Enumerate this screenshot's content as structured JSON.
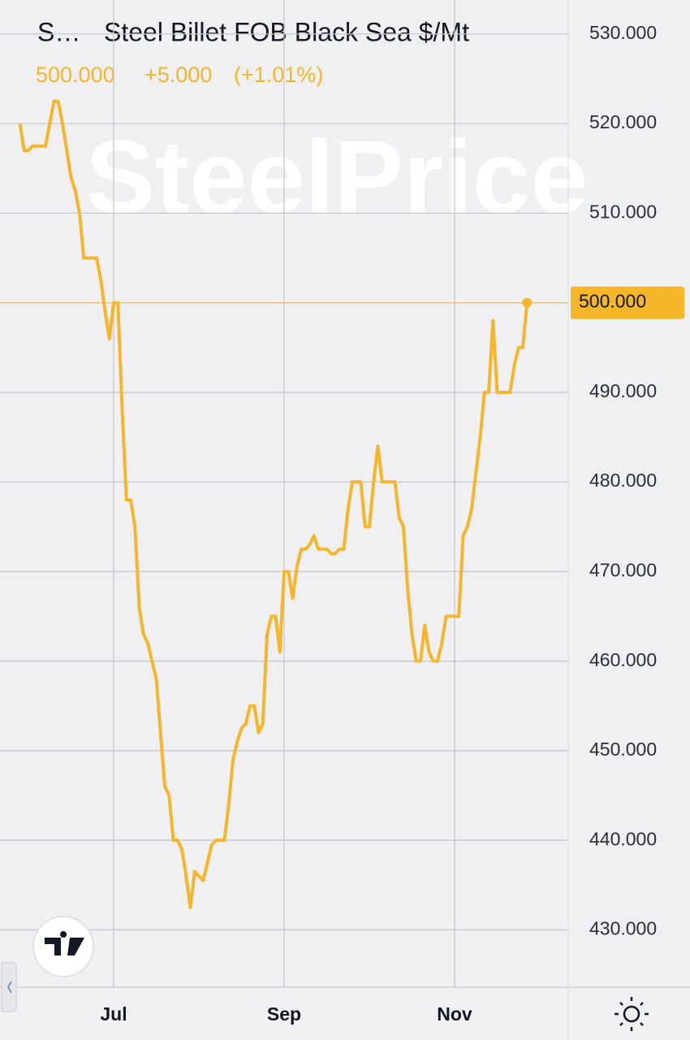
{
  "chart_data": {
    "type": "line",
    "symbol": "S…",
    "title": "Steel Billet FOB Black Sea $/Mt",
    "last": "500.000",
    "change": "+5.000",
    "change_pct": "(+1.01%)",
    "watermark": "SteelPrice",
    "price_label": "500.000",
    "categories": [
      null,
      null,
      null,
      null,
      null,
      null,
      null,
      null,
      null,
      null,
      null,
      null,
      null,
      null,
      null,
      null,
      null,
      null,
      null,
      null,
      null,
      null,
      "Jul",
      null,
      null,
      null,
      null,
      null,
      null,
      null,
      null,
      null,
      null,
      null,
      null,
      null,
      null,
      null,
      null,
      null,
      null,
      null,
      null,
      null,
      null,
      null,
      null,
      null,
      null,
      null,
      null,
      null,
      null,
      null,
      null,
      null,
      null,
      null,
      null,
      null,
      null,
      null,
      "Sep",
      null,
      null,
      null,
      null,
      null,
      null,
      null,
      null,
      null,
      null,
      null,
      null,
      null,
      null,
      null,
      null,
      null,
      null,
      null,
      null,
      null,
      null,
      null,
      null,
      null,
      null,
      null,
      null,
      null,
      null,
      null,
      null,
      null,
      null,
      null,
      null,
      null,
      null,
      null,
      "Nov",
      null,
      null,
      null,
      null,
      null,
      null,
      null,
      null,
      null,
      null,
      null,
      null,
      null,
      null,
      null,
      null,
      null
    ],
    "series": [
      {
        "name": "Steel Billet FOB Black Sea $/Mt",
        "color": "#f5b62a",
        "values": [
          520,
          517,
          517,
          517.5,
          517.5,
          517.5,
          517.5,
          520,
          522.5,
          522.5,
          520,
          517,
          514,
          512.5,
          510,
          505,
          505,
          505,
          505,
          502.5,
          499,
          496,
          500,
          500,
          488,
          478,
          478,
          475,
          466,
          463,
          462,
          460,
          458,
          452,
          446,
          445,
          440,
          440,
          439,
          436,
          432.5,
          436.5,
          436,
          435.5,
          437.5,
          439.5,
          440,
          440,
          440,
          444,
          449,
          451,
          452.5,
          453,
          455,
          455,
          452,
          453,
          463,
          465,
          465,
          461,
          470,
          470,
          467,
          470.5,
          472.5,
          472.5,
          473,
          474,
          472.5,
          472.5,
          472.5,
          472,
          472,
          472.5,
          472.5,
          477,
          480,
          480,
          480,
          475,
          475,
          480,
          484,
          480,
          480,
          480,
          480,
          476,
          475,
          468,
          463,
          460,
          460,
          464,
          461,
          460,
          460,
          462,
          465,
          465,
          465,
          465,
          474,
          475,
          477,
          481,
          485,
          490,
          490,
          498,
          490,
          490,
          490,
          490,
          493,
          495,
          495,
          500
        ]
      }
    ],
    "ylim": [
      423.6,
      533.8
    ],
    "yticks": [
      {
        "value": 430,
        "label": "430.000"
      },
      {
        "value": 440,
        "label": "440.000"
      },
      {
        "value": 450,
        "label": "450.000"
      },
      {
        "value": 460,
        "label": "460.000"
      },
      {
        "value": 470,
        "label": "470.000"
      },
      {
        "value": 480,
        "label": "480.000"
      },
      {
        "value": 490,
        "label": "490.000"
      },
      {
        "value": 500,
        "label": "500.000"
      },
      {
        "value": 510,
        "label": "510.000"
      },
      {
        "value": 520,
        "label": "520.000"
      },
      {
        "value": 530,
        "label": "530.000"
      }
    ],
    "grid": true
  }
}
